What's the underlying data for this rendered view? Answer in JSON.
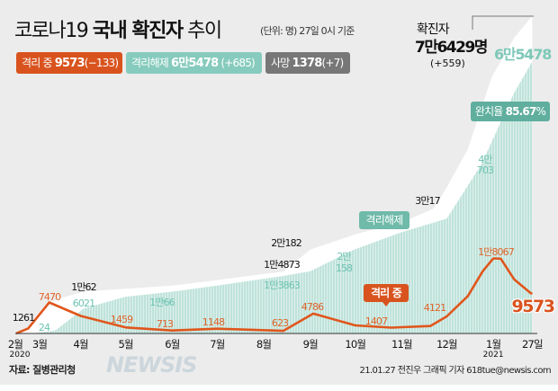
{
  "header": {
    "title_light": "코로나19",
    "title_bold": "국내 확진자",
    "title_tail": "추이",
    "subtitle": "(단위: 명) 27일 0시 기준"
  },
  "badges": [
    {
      "label": "격리 중",
      "value": "9573",
      "change": "(−133)",
      "color": "#d9531e"
    },
    {
      "label": "격리해제",
      "value": "6만5478",
      "change": "(+685)",
      "color": "#86cbbd"
    },
    {
      "label": "사망",
      "value": "1378",
      "change": "(+7)",
      "color": "#777777"
    }
  ],
  "total": {
    "label": "확진자",
    "value": "7만6429명",
    "change": "(+559)",
    "released_value": "6만5478"
  },
  "recovery_badge": {
    "label": "완치율",
    "value": "85.67",
    "unit": "%"
  },
  "series_tags": {
    "released": "격리해제",
    "isolated": "격리 중"
  },
  "chart_data": {
    "type": "area",
    "xlabel": "",
    "ylabel": "",
    "x_ticks": [
      {
        "date": "2020-02-15",
        "label": "2월"
      },
      {
        "date": "2020-03-01",
        "label": "3월"
      },
      {
        "date": "2020-04-01",
        "label": "4월"
      },
      {
        "date": "2020-05-01",
        "label": "5월"
      },
      {
        "date": "2020-06-01",
        "label": "6월"
      },
      {
        "date": "2020-07-01",
        "label": "7월"
      },
      {
        "date": "2020-08-01",
        "label": "8월"
      },
      {
        "date": "2020-09-01",
        "label": "9월"
      },
      {
        "date": "2020-10-01",
        "label": "10월"
      },
      {
        "date": "2020-11-01",
        "label": "11월"
      },
      {
        "date": "2020-12-01",
        "label": "12월"
      },
      {
        "date": "2021-01-01",
        "label": "1월"
      },
      {
        "date": "2021-01-27",
        "label": "27일"
      }
    ],
    "year_labels": [
      {
        "date": "2020-02-15",
        "label": "2020"
      },
      {
        "date": "2021-01-01",
        "label": "2021"
      }
    ],
    "colors": {
      "confirmed": "#ffffff",
      "released": "#bfe3da",
      "isolated": "#e0561c"
    },
    "series": [
      {
        "key": "confirmed",
        "points": [
          [
            "2020-02-18",
            31
          ],
          [
            "2020-02-26",
            1261
          ],
          [
            "2020-03-01",
            3736
          ],
          [
            "2020-03-10",
            7513
          ],
          [
            "2020-03-20",
            8652
          ],
          [
            "2020-04-03",
            10062
          ],
          [
            "2020-05-01",
            10774
          ],
          [
            "2020-06-01",
            11541
          ],
          [
            "2020-07-01",
            12850
          ],
          [
            "2020-08-01",
            14336
          ],
          [
            "2020-08-14",
            14873
          ],
          [
            "2020-09-01",
            20182
          ],
          [
            "2020-10-01",
            23889
          ],
          [
            "2020-11-01",
            26732
          ],
          [
            "2020-11-22",
            30017
          ],
          [
            "2020-12-01",
            35163
          ],
          [
            "2020-12-15",
            44364
          ],
          [
            "2020-12-31",
            61769
          ],
          [
            "2021-01-15",
            71241
          ],
          [
            "2021-01-27",
            76429
          ]
        ]
      },
      {
        "key": "released",
        "points": [
          [
            "2020-02-18",
            16
          ],
          [
            "2020-02-29",
            24
          ],
          [
            "2020-03-15",
            714
          ],
          [
            "2020-04-03",
            6021
          ],
          [
            "2020-05-01",
            8854
          ],
          [
            "2020-06-01",
            10066
          ],
          [
            "2020-07-01",
            11537
          ],
          [
            "2020-08-14",
            13863
          ],
          [
            "2020-09-01",
            14997
          ],
          [
            "2020-09-30",
            20158
          ],
          [
            "2020-11-01",
            24395
          ],
          [
            "2020-12-01",
            27632
          ],
          [
            "2020-12-24",
            40703
          ],
          [
            "2021-01-15",
            58013
          ],
          [
            "2021-01-27",
            65478
          ]
        ]
      },
      {
        "key": "isolated",
        "points": [
          [
            "2020-02-18",
            15
          ],
          [
            "2020-02-26",
            1214
          ],
          [
            "2020-03-11",
            7470
          ],
          [
            "2020-04-01",
            4216
          ],
          [
            "2020-05-01",
            1459
          ],
          [
            "2020-06-01",
            713
          ],
          [
            "2020-07-01",
            1148
          ],
          [
            "2020-08-14",
            623
          ],
          [
            "2020-09-03",
            4786
          ],
          [
            "2020-10-01",
            1950
          ],
          [
            "2020-10-25",
            1407
          ],
          [
            "2020-11-20",
            1800
          ],
          [
            "2020-12-01",
            4121
          ],
          [
            "2020-12-15",
            9000
          ],
          [
            "2020-12-25",
            15000
          ],
          [
            "2021-01-01",
            18067
          ],
          [
            "2021-01-06",
            18000
          ],
          [
            "2021-01-15",
            13000
          ],
          [
            "2021-01-26",
            9706
          ],
          [
            "2021-01-27",
            9573
          ]
        ]
      }
    ],
    "annotations": {
      "confirmed": [
        "1261",
        "1만62",
        "1만4873",
        "2만182",
        "3만17"
      ],
      "released": [
        "24",
        "6021",
        "1만66",
        "1만3863",
        "2만",
        "158",
        "4만",
        "703"
      ],
      "isolated": [
        "7470",
        "1459",
        "713",
        "1148",
        "623",
        "4786",
        "1407",
        "4121",
        "1만8067",
        "9573"
      ]
    }
  },
  "footer": {
    "source": "자료: 질병관리청",
    "credit": "21.01.27 전진우 그래픽 기자 618tue@newsis.com",
    "watermark": "NEWSIS"
  }
}
